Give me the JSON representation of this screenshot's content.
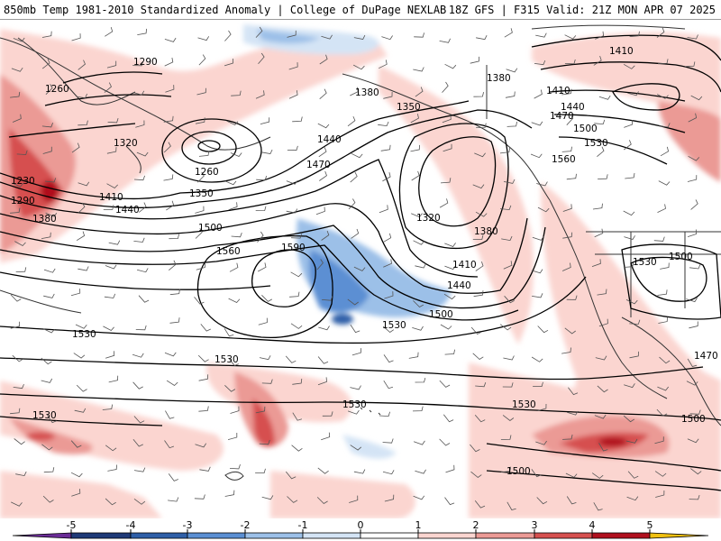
{
  "header": {
    "left_title": "850mb Temp 1981-2010 Standardized Anomaly | College of DuPage NEXLAB",
    "right_title": "18Z GFS | F315 Valid: 21Z MON APR 07 2025"
  },
  "colorbar": {
    "ticks": [
      "-5",
      "-4",
      "-3",
      "-2",
      "-1",
      "0",
      "1",
      "2",
      "3",
      "4",
      "5"
    ],
    "colors": [
      "#6a2c96",
      "#1f3a78",
      "#2f5fa8",
      "#5b8fd3",
      "#9cc0e8",
      "#d4e4f5",
      "#ffffff",
      "#fbd5d0",
      "#eb9a95",
      "#d6504f",
      "#b0101e",
      "#7a0a12",
      "#f0c010"
    ]
  },
  "contour_labels": [
    "1290",
    "1260",
    "1320",
    "1230",
    "1290",
    "1380",
    "1410",
    "1440",
    "1260",
    "1350",
    "1500",
    "1440",
    "1470",
    "1380",
    "1350",
    "1320",
    "1380",
    "1410",
    "1440",
    "1500",
    "1530",
    "1560",
    "1590",
    "1530",
    "1380",
    "1410",
    "1440",
    "1470",
    "1500",
    "1530",
    "1560",
    "1530",
    "1500",
    "1470",
    "1530",
    "1530",
    "1530",
    "1530",
    "1500",
    "1500"
  ]
}
